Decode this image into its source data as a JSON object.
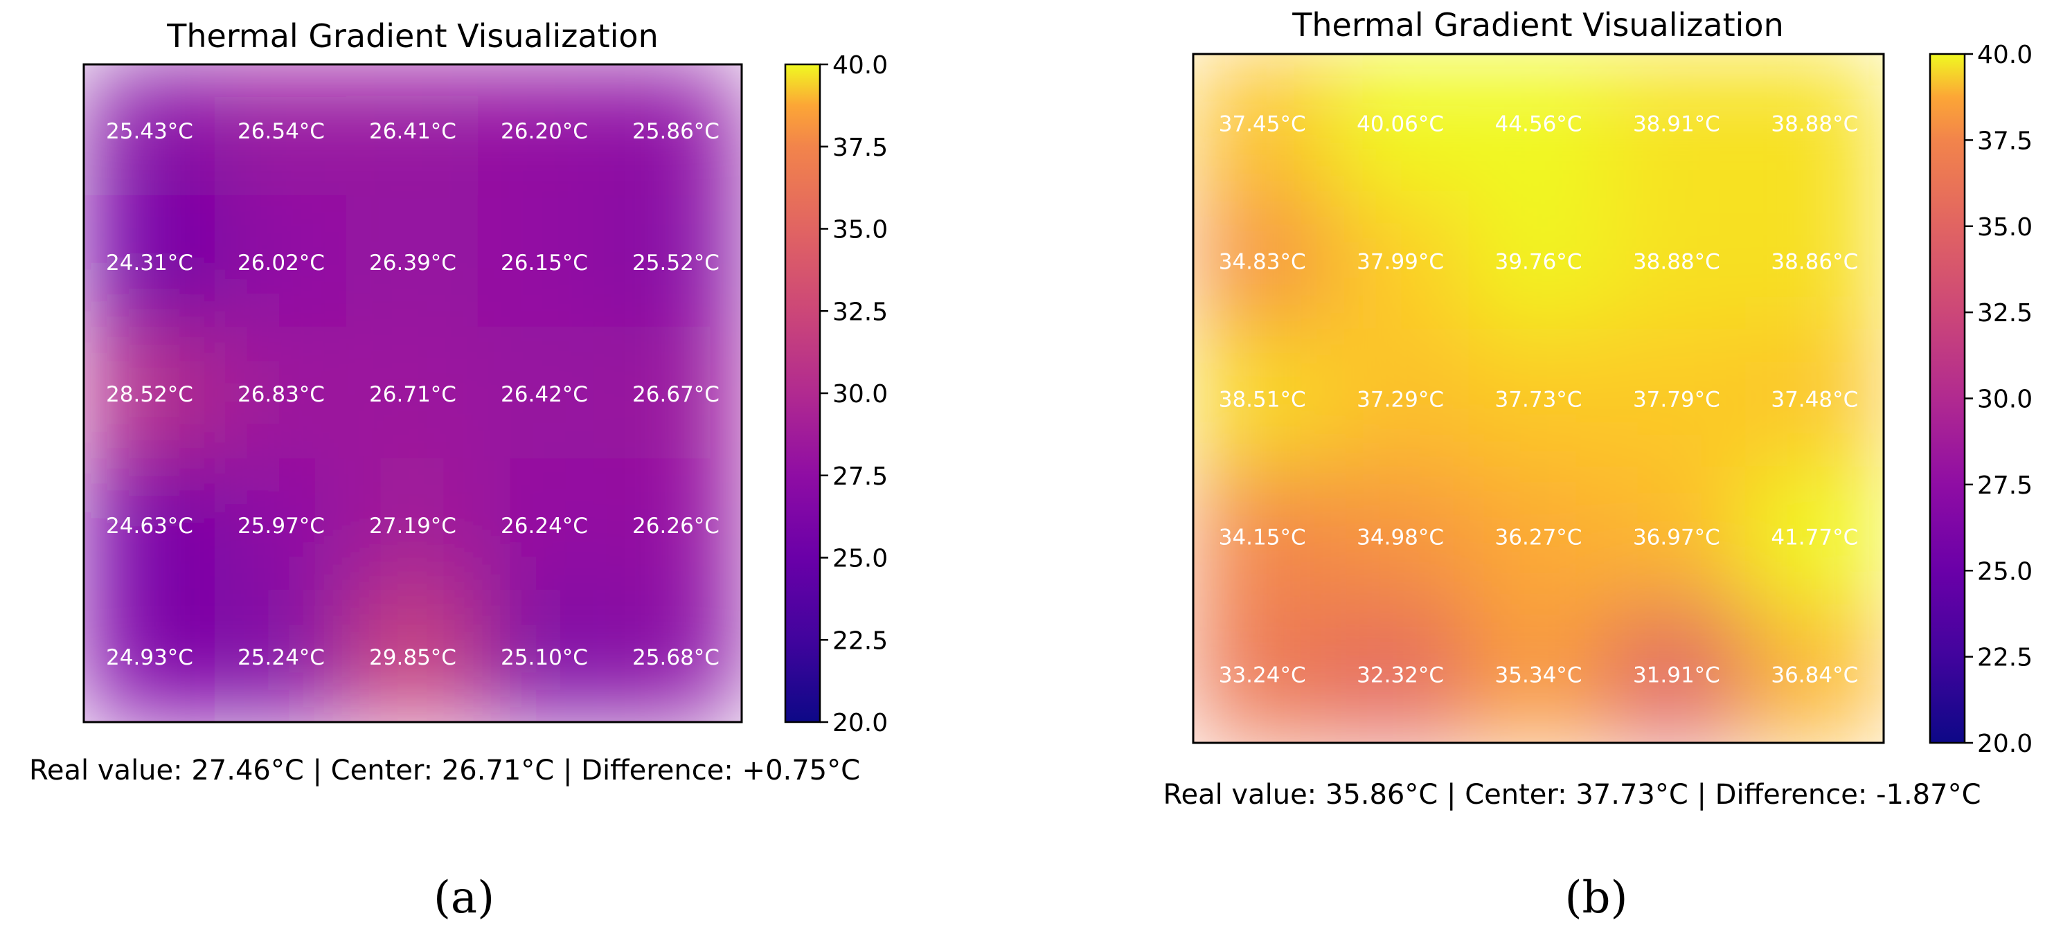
{
  "chart_data": [
    {
      "type": "heatmap",
      "panel_label": "(a)",
      "title": "Thermal Gradient Visualization",
      "rows": 5,
      "cols": 5,
      "values": [
        [
          25.43,
          26.54,
          26.41,
          26.2,
          25.86
        ],
        [
          24.31,
          26.02,
          26.39,
          26.15,
          25.52
        ],
        [
          28.52,
          26.83,
          26.71,
          26.42,
          26.67
        ],
        [
          24.63,
          25.97,
          27.19,
          26.24,
          26.26
        ],
        [
          24.93,
          25.24,
          29.85,
          25.1,
          25.68
        ]
      ],
      "cell_labels": [
        [
          "25.43°C",
          "26.54°C",
          "26.41°C",
          "26.20°C",
          "25.86°C"
        ],
        [
          "24.31°C",
          "26.02°C",
          "26.39°C",
          "26.15°C",
          "25.52°C"
        ],
        [
          "28.52°C",
          "26.83°C",
          "26.71°C",
          "26.42°C",
          "26.67°C"
        ],
        [
          "24.63°C",
          "25.97°C",
          "27.19°C",
          "26.24°C",
          "26.26°C"
        ],
        [
          "24.93°C",
          "25.24°C",
          "29.85°C",
          "25.10°C",
          "25.68°C"
        ]
      ],
      "colorbar": {
        "colormap": "plasma",
        "range": [
          20.0,
          40.0
        ],
        "ticks": [
          40.0,
          37.5,
          35.0,
          32.5,
          30.0,
          27.5,
          25.0,
          22.5,
          20.0
        ],
        "tick_labels": [
          "40.0",
          "37.5",
          "35.0",
          "32.5",
          "30.0",
          "27.5",
          "25.0",
          "22.5",
          "20.0"
        ]
      },
      "caption": "Real value: 27.46°C | Center: 26.71°C | Difference: +0.75°C"
    },
    {
      "type": "heatmap",
      "panel_label": "(b)",
      "title": "Thermal Gradient Visualization",
      "rows": 5,
      "cols": 5,
      "values": [
        [
          37.45,
          40.06,
          44.56,
          38.91,
          38.88
        ],
        [
          34.83,
          37.99,
          39.76,
          38.88,
          38.86
        ],
        [
          38.51,
          37.29,
          37.73,
          37.79,
          37.48
        ],
        [
          34.15,
          34.98,
          36.27,
          36.97,
          41.77
        ],
        [
          33.24,
          32.32,
          35.34,
          31.91,
          36.84
        ]
      ],
      "cell_labels": [
        [
          "37.45°C",
          "40.06°C",
          "44.56°C",
          "38.91°C",
          "38.88°C"
        ],
        [
          "34.83°C",
          "37.99°C",
          "39.76°C",
          "38.88°C",
          "38.86°C"
        ],
        [
          "38.51°C",
          "37.29°C",
          "37.73°C",
          "37.79°C",
          "37.48°C"
        ],
        [
          "34.15°C",
          "34.98°C",
          "36.27°C",
          "36.97°C",
          "41.77°C"
        ],
        [
          "33.24°C",
          "32.32°C",
          "35.34°C",
          "31.91°C",
          "36.84°C"
        ]
      ],
      "colorbar": {
        "colormap": "plasma",
        "range": [
          20.0,
          40.0
        ],
        "ticks": [
          40.0,
          37.5,
          35.0,
          32.5,
          30.0,
          27.5,
          25.0,
          22.5,
          20.0
        ],
        "tick_labels": [
          "40.0",
          "37.5",
          "35.0",
          "32.5",
          "30.0",
          "27.5",
          "25.0",
          "22.5",
          "20.0"
        ]
      },
      "caption": "Real value: 35.86°C | Center: 37.73°C | Difference: -1.87°C"
    }
  ]
}
